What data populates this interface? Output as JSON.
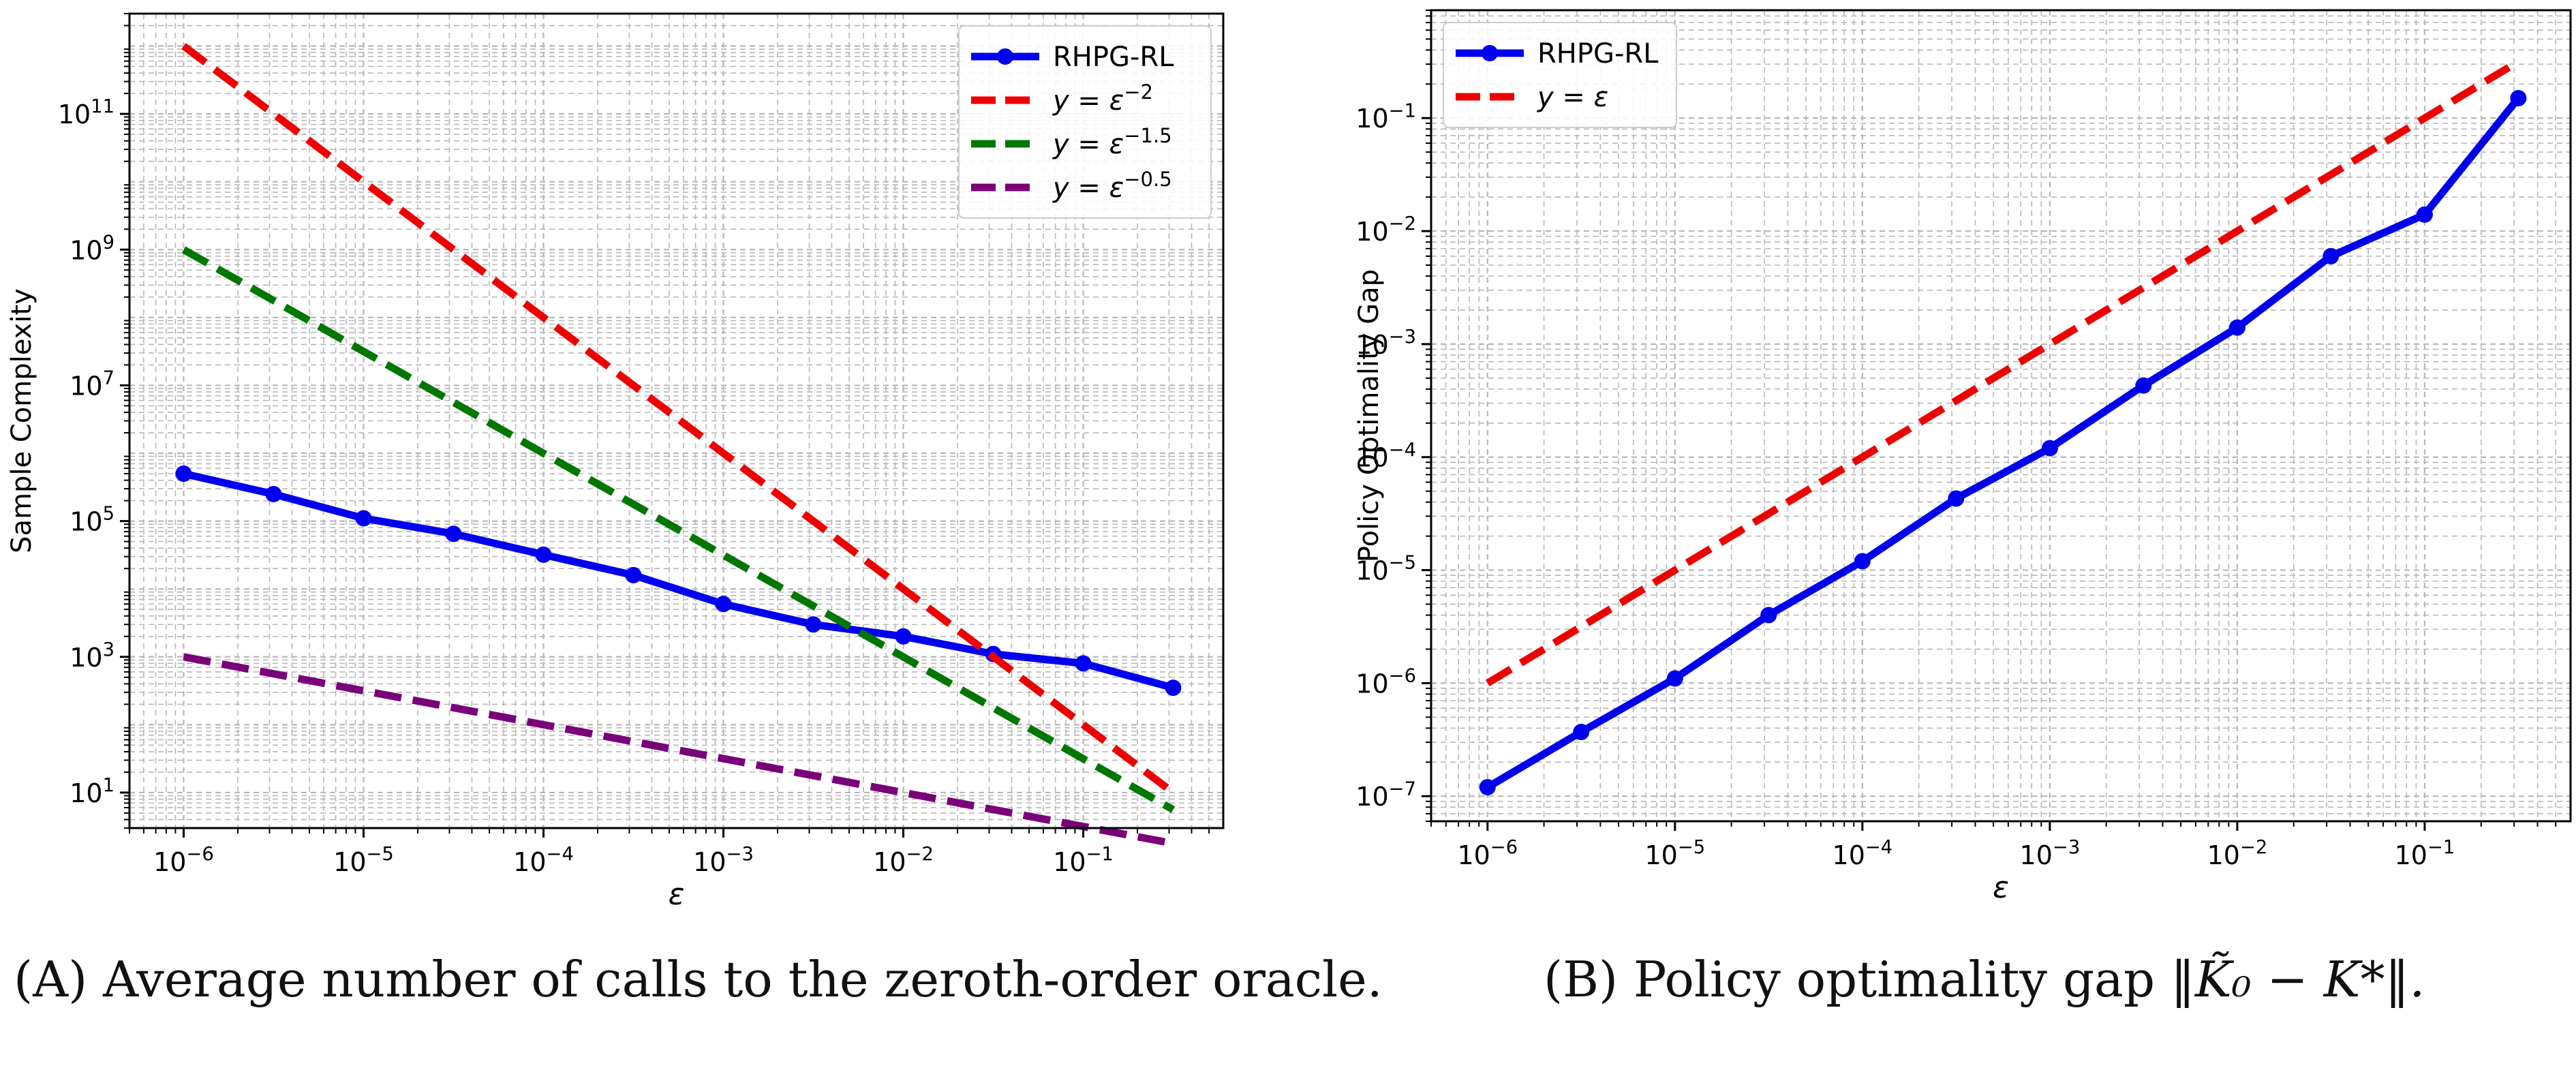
{
  "figure": {
    "captions": [
      {
        "label": "(A)",
        "text": "Average number of calls to the zeroth-order oracle."
      },
      {
        "label": "(B)",
        "text": "Policy optimality gap",
        "math": "‖K̃₀ − K*‖."
      }
    ]
  },
  "chart_data": [
    {
      "type": "line",
      "title": "",
      "xlabel": "ε",
      "ylabel": "Sample Complexity",
      "xscale": "log",
      "yscale": "log",
      "xlim": [
        5e-07,
        0.6
      ],
      "ylim": [
        3,
        3000000000000.0
      ],
      "grid": true,
      "legend": "top-right",
      "x_ticks": [
        1e-06,
        1e-05,
        0.0001,
        0.001,
        0.01,
        0.1
      ],
      "x_tick_labels": [
        {
          "base": "10",
          "exp": "−6"
        },
        {
          "base": "10",
          "exp": "−5"
        },
        {
          "base": "10",
          "exp": "−4"
        },
        {
          "base": "10",
          "exp": "−3"
        },
        {
          "base": "10",
          "exp": "−2"
        },
        {
          "base": "10",
          "exp": "−1"
        }
      ],
      "y_ticks": [
        10,
        1000,
        100000,
        10000000,
        1000000000,
        100000000000
      ],
      "y_tick_labels": [
        {
          "base": "10",
          "exp": "1"
        },
        {
          "base": "10",
          "exp": "3"
        },
        {
          "base": "10",
          "exp": "5"
        },
        {
          "base": "10",
          "exp": "7"
        },
        {
          "base": "10",
          "exp": "9"
        },
        {
          "base": "10",
          "exp": "11"
        }
      ],
      "series": [
        {
          "name": "RHPG-RL",
          "color": "#0000ee",
          "style": "solid-markers",
          "x": [
            1e-06,
            3.16e-06,
            1e-05,
            3.16e-05,
            0.0001,
            0.000316,
            0.001,
            0.00316,
            0.01,
            0.0316,
            0.1,
            0.316
          ],
          "y": [
            500000,
            250000,
            110000,
            65000,
            32000,
            16000,
            6000,
            3000,
            2000,
            1100,
            800,
            350
          ]
        },
        {
          "name": "y = ε⁻²",
          "legend": {
            "pre": "y = ε",
            "sup": "−2"
          },
          "color": "#ee0000",
          "style": "dashed",
          "x": [
            1e-06,
            0.316
          ],
          "y": [
            1000000000000.0,
            10
          ]
        },
        {
          "name": "y = ε⁻¹·⁵",
          "legend": {
            "pre": "y = ε",
            "sup": "−1.5"
          },
          "color": "#007700",
          "style": "dashed",
          "x": [
            1e-06,
            0.316
          ],
          "y": [
            1000000000.0,
            5.6
          ]
        },
        {
          "name": "y = ε⁻⁰·⁵",
          "legend": {
            "pre": "y = ε",
            "sup": "−0.5"
          },
          "color": "#7a007a",
          "style": "dashed",
          "x": [
            1e-06,
            0.316
          ],
          "y": [
            1000,
            1.78
          ]
        }
      ]
    },
    {
      "type": "line",
      "title": "",
      "xlabel": "ε",
      "ylabel": "Policy Optimality Gap",
      "xscale": "log",
      "yscale": "log",
      "xlim": [
        5e-07,
        0.6
      ],
      "ylim": [
        6e-08,
        0.9
      ],
      "grid": true,
      "legend": "top-left",
      "x_ticks": [
        1e-06,
        1e-05,
        0.0001,
        0.001,
        0.01,
        0.1
      ],
      "x_tick_labels": [
        {
          "base": "10",
          "exp": "−6"
        },
        {
          "base": "10",
          "exp": "−5"
        },
        {
          "base": "10",
          "exp": "−4"
        },
        {
          "base": "10",
          "exp": "−3"
        },
        {
          "base": "10",
          "exp": "−2"
        },
        {
          "base": "10",
          "exp": "−1"
        }
      ],
      "y_ticks": [
        1e-07,
        1e-06,
        1e-05,
        0.0001,
        0.001,
        0.01,
        0.1
      ],
      "y_tick_labels": [
        {
          "base": "10",
          "exp": "−7"
        },
        {
          "base": "10",
          "exp": "−6"
        },
        {
          "base": "10",
          "exp": "−5"
        },
        {
          "base": "10",
          "exp": "−4"
        },
        {
          "base": "10",
          "exp": "−3"
        },
        {
          "base": "10",
          "exp": "−2"
        },
        {
          "base": "10",
          "exp": "−1"
        }
      ],
      "series": [
        {
          "name": "RHPG-RL",
          "color": "#0000ee",
          "style": "solid-markers",
          "x": [
            1e-06,
            3.16e-06,
            1e-05,
            3.16e-05,
            0.0001,
            0.000316,
            0.001,
            0.00316,
            0.01,
            0.0316,
            0.1,
            0.316
          ],
          "y": [
            1.2e-07,
            3.7e-07,
            1.1e-06,
            4e-06,
            1.2e-05,
            4.3e-05,
            0.00012,
            0.00043,
            0.0014,
            0.006,
            0.014,
            0.15
          ]
        },
        {
          "name": "y = ε",
          "legend": {
            "pre": "y = ε",
            "sup": ""
          },
          "color": "#ee0000",
          "style": "dashed",
          "x": [
            1e-06,
            0.316
          ],
          "y": [
            1e-06,
            0.316
          ]
        }
      ]
    }
  ]
}
